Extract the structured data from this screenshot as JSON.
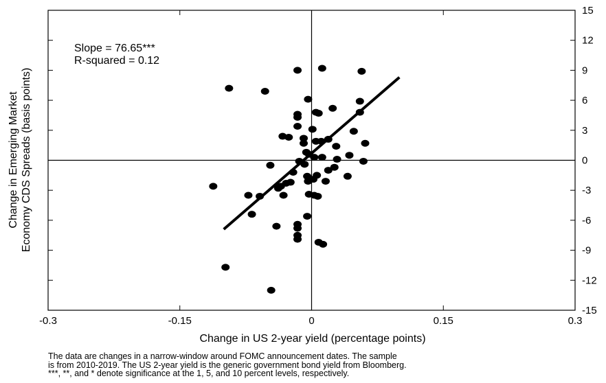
{
  "chart_data": {
    "type": "scatter",
    "xlabel": "Change in US 2-year yield (percentage points)",
    "ylabel": [
      "Change in Emerging Market",
      "Economy CDS Spreads (basis points)"
    ],
    "xlim": [
      -0.3,
      0.3
    ],
    "ylim": [
      -15,
      15
    ],
    "x_ticks": [
      -0.3,
      -0.15,
      0,
      0.15,
      0.3
    ],
    "x_tick_labels": [
      "-0.3",
      "-0.15",
      "0",
      "0.15",
      "0.3"
    ],
    "y_ticks": [
      15,
      12,
      9,
      6,
      3,
      0,
      -3,
      -6,
      -9,
      -12,
      -15
    ],
    "y_tick_labels": [
      "15",
      "12",
      "9",
      "6",
      "3",
      "0",
      "-3",
      "-6",
      "-9",
      "-12",
      "-15"
    ],
    "y_axis_side": "right",
    "annotations": [
      "Slope = 76.65***",
      "R-squared = 0.12"
    ],
    "fit_line": {
      "x": [
        -0.1,
        0.1
      ],
      "y": [
        -6.9,
        8.3
      ]
    },
    "points": [
      {
        "x": -0.094,
        "y": 7.2
      },
      {
        "x": -0.053,
        "y": 6.9
      },
      {
        "x": -0.016,
        "y": 9.0
      },
      {
        "x": 0.012,
        "y": 9.2
      },
      {
        "x": 0.057,
        "y": 8.9
      },
      {
        "x": -0.004,
        "y": 6.1
      },
      {
        "x": 0.055,
        "y": 5.9
      },
      {
        "x": -0.016,
        "y": 4.6
      },
      {
        "x": -0.016,
        "y": 4.3
      },
      {
        "x": 0.005,
        "y": 4.8
      },
      {
        "x": 0.008,
        "y": 4.7
      },
      {
        "x": 0.024,
        "y": 5.2
      },
      {
        "x": 0.055,
        "y": 4.8
      },
      {
        "x": -0.016,
        "y": 3.4
      },
      {
        "x": 0.001,
        "y": 3.1
      },
      {
        "x": 0.048,
        "y": 2.9
      },
      {
        "x": -0.033,
        "y": 2.4
      },
      {
        "x": -0.026,
        "y": 2.3
      },
      {
        "x": -0.009,
        "y": 2.2
      },
      {
        "x": 0.005,
        "y": 1.9
      },
      {
        "x": 0.011,
        "y": 1.9
      },
      {
        "x": 0.019,
        "y": 2.1
      },
      {
        "x": -0.009,
        "y": 1.7
      },
      {
        "x": 0.028,
        "y": 1.4
      },
      {
        "x": 0.061,
        "y": 1.7
      },
      {
        "x": -0.006,
        "y": 0.8
      },
      {
        "x": -0.003,
        "y": 0.6
      },
      {
        "x": 0.003,
        "y": 0.3
      },
      {
        "x": 0.012,
        "y": 0.3
      },
      {
        "x": 0.029,
        "y": 0.1
      },
      {
        "x": 0.043,
        "y": 0.5
      },
      {
        "x": 0.059,
        "y": -0.1
      },
      {
        "x": -0.014,
        "y": -0.1
      },
      {
        "x": -0.008,
        "y": -0.4
      },
      {
        "x": -0.047,
        "y": -0.5
      },
      {
        "x": -0.021,
        "y": -1.2
      },
      {
        "x": 0.019,
        "y": -1.0
      },
      {
        "x": 0.026,
        "y": -0.7
      },
      {
        "x": -0.005,
        "y": -1.6
      },
      {
        "x": 0.002,
        "y": -1.9
      },
      {
        "x": 0.006,
        "y": -1.5
      },
      {
        "x": -0.024,
        "y": -2.2
      },
      {
        "x": -0.029,
        "y": -2.3
      },
      {
        "x": -0.004,
        "y": -2.1
      },
      {
        "x": 0.016,
        "y": -2.1
      },
      {
        "x": 0.041,
        "y": -1.6
      },
      {
        "x": -0.035,
        "y": -2.6
      },
      {
        "x": -0.038,
        "y": -2.8
      },
      {
        "x": -0.112,
        "y": -2.6
      },
      {
        "x": -0.072,
        "y": -3.5
      },
      {
        "x": -0.059,
        "y": -3.6
      },
      {
        "x": -0.032,
        "y": -3.5
      },
      {
        "x": -0.003,
        "y": -3.4
      },
      {
        "x": 0.003,
        "y": -3.5
      },
      {
        "x": 0.007,
        "y": -3.6
      },
      {
        "x": -0.068,
        "y": -5.4
      },
      {
        "x": -0.005,
        "y": -5.6
      },
      {
        "x": -0.04,
        "y": -6.6
      },
      {
        "x": -0.016,
        "y": -6.4
      },
      {
        "x": -0.016,
        "y": -6.8
      },
      {
        "x": -0.016,
        "y": -7.5
      },
      {
        "x": -0.016,
        "y": -7.9
      },
      {
        "x": 0.008,
        "y": -8.2
      },
      {
        "x": 0.013,
        "y": -8.4
      },
      {
        "x": -0.098,
        "y": -10.7
      },
      {
        "x": -0.046,
        "y": -13.0
      }
    ]
  },
  "footnote": [
    "The data are changes in a narrow-window around FOMC announcement dates. The sample",
    "is from 2010-2019. The US 2-year yield is the generic government bond yield from Bloomberg.",
    "***, **, and * denote significance at the 1, 5, and 10 percent levels, respectively."
  ]
}
